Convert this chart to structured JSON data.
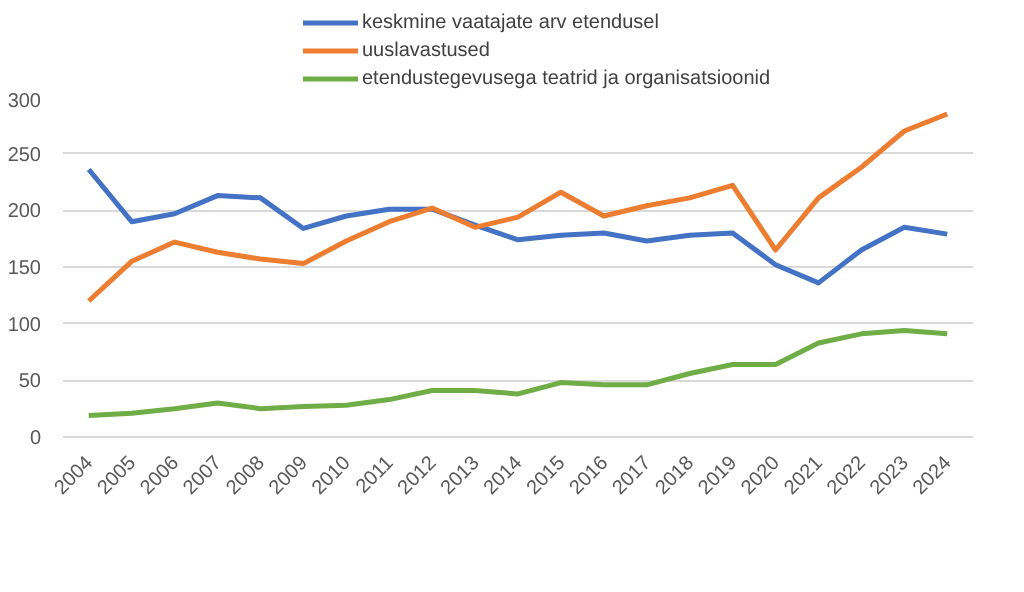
{
  "chart_data": {
    "type": "line",
    "categories": [
      "2004",
      "2005",
      "2006",
      "2007",
      "2008",
      "2009",
      "2010",
      "2011",
      "2012",
      "2013",
      "2014",
      "2015",
      "2016",
      "2017",
      "2018",
      "2019",
      "2020",
      "2021",
      "2022",
      "2023",
      "2024"
    ],
    "series": [
      {
        "name": "keskmine vaatajate arv etendusel",
        "color": "#4472c4",
        "values": [
          236,
          190,
          197,
          213,
          211,
          184,
          195,
          201,
          201,
          187,
          174,
          178,
          180,
          173,
          178,
          180,
          152,
          136,
          165,
          185,
          179
        ]
      },
      {
        "name": "uuslavastused",
        "color": "#ed7d31",
        "values": [
          120,
          155,
          172,
          163,
          157,
          153,
          173,
          190,
          202,
          185,
          194,
          216,
          195,
          204,
          211,
          222,
          165,
          211,
          238,
          270,
          285
        ]
      },
      {
        "name": "etendustegevusega teatrid ja organisatsioonid",
        "color": "#70ad47",
        "values": [
          19,
          21,
          25,
          30,
          25,
          27,
          28,
          33,
          41,
          41,
          38,
          48,
          46,
          46,
          56,
          64,
          64,
          83,
          91,
          94,
          91
        ]
      }
    ],
    "ylim": [
      0,
      300
    ],
    "yticks": [
      0,
      50,
      100,
      150,
      200,
      250,
      300
    ],
    "grid": "y",
    "legend": "top"
  }
}
